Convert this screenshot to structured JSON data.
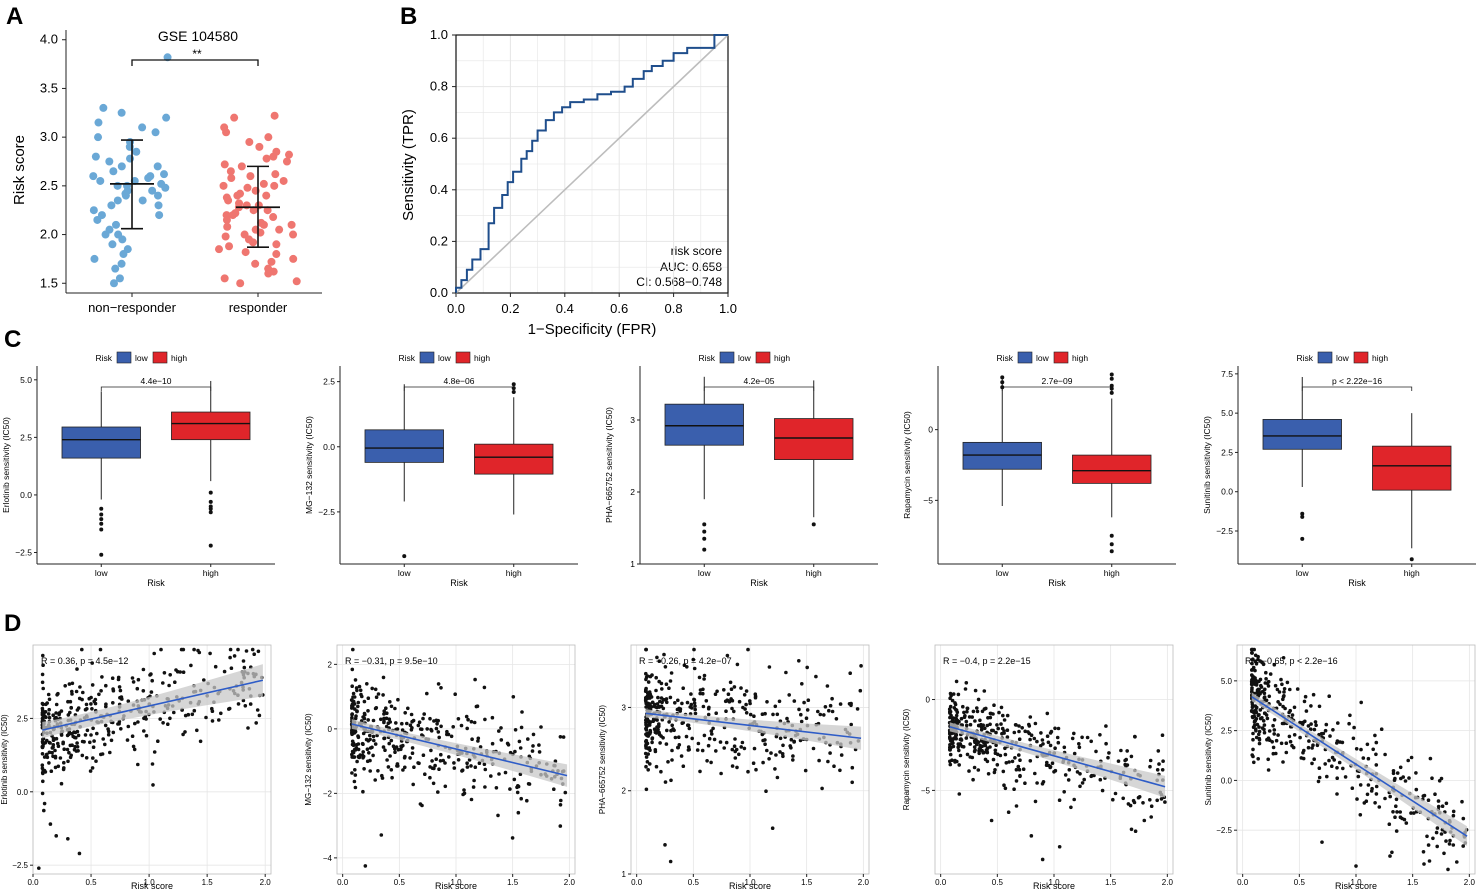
{
  "panel_letters": {
    "a": "A",
    "b": "B",
    "c": "C",
    "d": "D"
  },
  "colors": {
    "blue_point": "#6aa8d6",
    "red_point": "#ef7670",
    "box_low": "#3a5fad",
    "box_high": "#e0252a",
    "roc_line": "#1f4e8c",
    "diag_line": "#bdbdbd",
    "reg_line": "#2e5cc7",
    "ci_band": "#c8c8c8",
    "grid": "#e6e6e6"
  },
  "chart_data": [
    {
      "id": "A",
      "type": "scatter",
      "title": "GSE 104580",
      "ylabel": "Risk score",
      "categories": [
        "non−responder",
        "responder"
      ],
      "yticks": [
        "1.5",
        "2.0",
        "2.5",
        "3.0",
        "3.5",
        "4.0"
      ],
      "ylim": [
        1.4,
        4.1
      ],
      "significance": "**",
      "groups": [
        {
          "name": "non−responder",
          "color_key": "blue_point",
          "mean": 2.52,
          "sd_low": 2.06,
          "sd_high": 2.97,
          "values": [
            1.5,
            1.55,
            1.65,
            1.7,
            1.75,
            1.8,
            1.85,
            1.9,
            1.95,
            2.0,
            2.0,
            2.05,
            2.1,
            2.15,
            2.2,
            2.2,
            2.25,
            2.3,
            2.3,
            2.35,
            2.35,
            2.4,
            2.4,
            2.42,
            2.45,
            2.45,
            2.48,
            2.5,
            2.5,
            2.52,
            2.55,
            2.55,
            2.58,
            2.6,
            2.6,
            2.62,
            2.65,
            2.7,
            2.7,
            2.75,
            2.78,
            2.8,
            2.85,
            2.9,
            2.95,
            3.0,
            3.05,
            3.1,
            3.15,
            3.2,
            3.25,
            3.3,
            3.82
          ]
        },
        {
          "name": "responder",
          "color_key": "red_point",
          "mean": 2.28,
          "sd_low": 1.87,
          "sd_high": 2.7,
          "values": [
            1.5,
            1.52,
            1.55,
            1.6,
            1.62,
            1.65,
            1.7,
            1.72,
            1.75,
            1.8,
            1.82,
            1.85,
            1.88,
            1.9,
            1.92,
            1.95,
            1.98,
            2.0,
            2.0,
            2.02,
            2.05,
            2.05,
            2.08,
            2.1,
            2.1,
            2.12,
            2.15,
            2.18,
            2.2,
            2.2,
            2.22,
            2.25,
            2.25,
            2.28,
            2.3,
            2.3,
            2.32,
            2.35,
            2.38,
            2.4,
            2.4,
            2.42,
            2.45,
            2.48,
            2.5,
            2.5,
            2.52,
            2.55,
            2.58,
            2.6,
            2.62,
            2.65,
            2.7,
            2.72,
            2.75,
            2.78,
            2.8,
            2.82,
            2.85,
            2.9,
            2.95,
            3.0,
            3.05,
            3.1,
            3.2,
            3.22
          ]
        }
      ]
    },
    {
      "id": "B",
      "type": "line",
      "xlabel": "1−Specificity (FPR)",
      "ylabel": "Sensitivity (TPR)",
      "xticks": [
        "0.0",
        "0.2",
        "0.4",
        "0.6",
        "0.8",
        "1.0"
      ],
      "yticks": [
        "0.0",
        "0.2",
        "0.4",
        "0.6",
        "0.8",
        "1.0"
      ],
      "xlim": [
        0,
        1
      ],
      "ylim": [
        0,
        1
      ],
      "legend": {
        "line1": "risk score",
        "line2": "AUC: 0.658",
        "line3": "CI: 0.568−0.748"
      },
      "fpr": [
        0.0,
        0.0,
        0.02,
        0.02,
        0.04,
        0.04,
        0.06,
        0.06,
        0.09,
        0.09,
        0.12,
        0.12,
        0.14,
        0.14,
        0.17,
        0.17,
        0.19,
        0.19,
        0.21,
        0.21,
        0.24,
        0.24,
        0.26,
        0.26,
        0.28,
        0.28,
        0.3,
        0.3,
        0.33,
        0.33,
        0.36,
        0.36,
        0.39,
        0.39,
        0.42,
        0.42,
        0.47,
        0.47,
        0.52,
        0.52,
        0.57,
        0.57,
        0.62,
        0.62,
        0.65,
        0.65,
        0.69,
        0.69,
        0.72,
        0.72,
        0.76,
        0.76,
        0.8,
        0.8,
        0.85,
        0.85,
        0.95,
        0.95,
        1.0
      ],
      "tpr": [
        0.0,
        0.02,
        0.02,
        0.05,
        0.05,
        0.09,
        0.09,
        0.13,
        0.13,
        0.17,
        0.17,
        0.27,
        0.27,
        0.33,
        0.33,
        0.38,
        0.38,
        0.43,
        0.43,
        0.47,
        0.47,
        0.52,
        0.52,
        0.55,
        0.55,
        0.59,
        0.59,
        0.63,
        0.63,
        0.67,
        0.67,
        0.7,
        0.7,
        0.72,
        0.72,
        0.74,
        0.74,
        0.75,
        0.75,
        0.77,
        0.77,
        0.78,
        0.78,
        0.8,
        0.8,
        0.83,
        0.83,
        0.86,
        0.86,
        0.88,
        0.88,
        0.9,
        0.9,
        0.93,
        0.93,
        0.95,
        0.95,
        1.0,
        1.0
      ]
    },
    {
      "id": "C",
      "type": "box",
      "legend_title": "Risk",
      "legend_items": [
        "low",
        "high"
      ],
      "xlabel": "Risk",
      "categories": [
        "low",
        "high"
      ],
      "panels": [
        {
          "ylabel": "Erlotinib sensitivity (IC50)",
          "pvalue": "4.4e−10",
          "ylim": [
            -3.0,
            5.6
          ],
          "yticks": [
            {
              "v": -2.5,
              "t": "−2.5"
            },
            {
              "v": 0.0,
              "t": "0.0"
            },
            {
              "v": 2.5,
              "t": "2.5"
            },
            {
              "v": 5.0,
              "t": "5.0"
            }
          ],
          "boxes": [
            {
              "q1": 1.6,
              "median": 2.4,
              "q3": 2.95,
              "wlo": -0.2,
              "whi": 4.5,
              "outliers": [
                -0.6,
                -0.85,
                -1.05,
                -1.25,
                -1.5,
                -2.6
              ]
            },
            {
              "q1": 2.4,
              "median": 3.1,
              "q3": 3.6,
              "wlo": 0.6,
              "whi": 4.95,
              "outliers": [
                0.1,
                -0.3,
                -0.5,
                -0.6,
                -0.75,
                -2.2
              ]
            }
          ]
        },
        {
          "ylabel": "MG−132 sensitivity (IC50)",
          "pvalue": "4.8e−06",
          "ylim": [
            -4.5,
            3.1
          ],
          "yticks": [
            {
              "v": -2.5,
              "t": "−2.5"
            },
            {
              "v": 0.0,
              "t": "0.0"
            },
            {
              "v": 2.5,
              "t": "2.5"
            }
          ],
          "boxes": [
            {
              "q1": -0.6,
              "median": -0.05,
              "q3": 0.65,
              "wlo": -2.1,
              "whi": 2.4,
              "outliers": [
                -4.2
              ]
            },
            {
              "q1": -1.05,
              "median": -0.4,
              "q3": 0.1,
              "wlo": -2.6,
              "whi": 1.9,
              "outliers": [
                2.1,
                2.25,
                2.4
              ]
            }
          ]
        },
        {
          "ylabel": "PHA−665752 sensitivity (IC50)",
          "pvalue": "4.2e−05",
          "ylim": [
            1.0,
            3.75
          ],
          "yticks": [
            {
              "v": 1,
              "t": "1"
            },
            {
              "v": 2,
              "t": "2"
            },
            {
              "v": 3,
              "t": "3"
            }
          ],
          "boxes": [
            {
              "q1": 2.65,
              "median": 2.92,
              "q3": 3.22,
              "wlo": 1.9,
              "whi": 3.6,
              "outliers": [
                1.55,
                1.45,
                1.35,
                1.2
              ]
            },
            {
              "q1": 2.45,
              "median": 2.75,
              "q3": 3.02,
              "wlo": 1.65,
              "whi": 3.55,
              "outliers": [
                1.55
              ]
            }
          ]
        },
        {
          "ylabel": "Rapamycin sensitivity (IC50)",
          "pvalue": "2.7e−09",
          "ylim": [
            -9.5,
            4.5
          ],
          "yticks": [
            {
              "v": -5,
              "t": "−5"
            },
            {
              "v": 0,
              "t": "0"
            }
          ],
          "boxes": [
            {
              "q1": -2.8,
              "median": -1.8,
              "q3": -0.9,
              "wlo": -5.4,
              "whi": 3.6,
              "outliers": [
                3.0,
                3.35,
                3.7
              ]
            },
            {
              "q1": -3.8,
              "median": -2.9,
              "q3": -1.8,
              "wlo": -6.2,
              "whi": 2.2,
              "outliers": [
                2.6,
                2.9,
                3.1,
                3.6,
                3.9,
                -7.5,
                -8.1,
                -8.6
              ]
            }
          ]
        },
        {
          "ylabel": "Sunitinib sensitivity (IC50)",
          "pvalue": "p < 2.22e−16",
          "ylim": [
            -4.6,
            8.0
          ],
          "yticks": [
            {
              "v": -2.5,
              "t": "−2.5"
            },
            {
              "v": 0.0,
              "t": "0.0"
            },
            {
              "v": 2.5,
              "t": "2.5"
            },
            {
              "v": 5.0,
              "t": "5.0"
            },
            {
              "v": 7.5,
              "t": "7.5"
            }
          ],
          "boxes": [
            {
              "q1": 2.7,
              "median": 3.55,
              "q3": 4.6,
              "wlo": 0.3,
              "whi": 7.3,
              "outliers": [
                -1.4,
                -1.6,
                -3.0
              ]
            },
            {
              "q1": 0.1,
              "median": 1.65,
              "q3": 2.9,
              "wlo": -3.6,
              "whi": 5.0,
              "outliers": [
                -4.3
              ]
            }
          ]
        }
      ]
    },
    {
      "id": "D",
      "type": "scatter",
      "xlabel": "Risk score",
      "panels": [
        {
          "ylabel": "Erlotinib sensitivity (IC50)",
          "stat": "R = 0.36, p = 4.5e−12",
          "xlim": [
            0.0,
            2.05
          ],
          "ylim": [
            -2.8,
            5.0
          ],
          "xticks": [
            0.0,
            0.5,
            1.0,
            1.5,
            2.0
          ],
          "yticks": [
            {
              "v": -2.5,
              "t": "−2.5"
            },
            {
              "v": 0.0,
              "t": "0.0"
            },
            {
              "v": 2.5,
              "t": "2.5"
            }
          ],
          "fit": [
            2.1,
            3.8
          ],
          "ci": [
            0.28,
            0.55
          ],
          "seed": 11,
          "n": 420,
          "spread": 1.05,
          "points": [
            [
              0.05,
              -2.6
            ],
            [
              0.1,
              -0.4
            ],
            [
              0.15,
              -1.1
            ],
            [
              0.2,
              -1.5
            ],
            [
              0.3,
              -1.6
            ],
            [
              0.4,
              -2.1
            ],
            [
              1.92,
              4.0
            ],
            [
              1.95,
              2.6
            ]
          ]
        },
        {
          "ylabel": "MG−132 sensitivity (IC50)",
          "stat": "R = −0.31, p = 9.5e−10",
          "xlim": [
            -0.05,
            2.05
          ],
          "ylim": [
            -4.5,
            2.6
          ],
          "xticks": [
            0.0,
            0.5,
            1.0,
            1.5,
            2.0
          ],
          "yticks": [
            {
              "v": -4,
              "t": "−4"
            },
            {
              "v": -2,
              "t": "−2"
            },
            {
              "v": 0,
              "t": "0"
            },
            {
              "v": 2,
              "t": "2"
            }
          ],
          "fit": [
            0.15,
            -1.45
          ],
          "ci": [
            0.15,
            0.35
          ],
          "seed": 23,
          "n": 420,
          "spread": 0.95,
          "points": [
            [
              0.2,
              -4.25
            ],
            [
              1.55,
              -2.6
            ],
            [
              1.9,
              -1.3
            ]
          ]
        },
        {
          "ylabel": "PHA−665752 sensitivity (IC50)",
          "stat": "R = −0.26, p = 4.2e−07",
          "xlim": [
            -0.05,
            2.05
          ],
          "ylim": [
            1.0,
            3.75
          ],
          "xticks": [
            0.0,
            0.5,
            1.0,
            1.5,
            2.0
          ],
          "yticks": [
            {
              "v": 1,
              "t": "1"
            },
            {
              "v": 2,
              "t": "2"
            },
            {
              "v": 3,
              "t": "3"
            }
          ],
          "fit": [
            2.93,
            2.63
          ],
          "ci": [
            0.05,
            0.14
          ],
          "seed": 37,
          "n": 420,
          "spread": 0.42,
          "points": [
            [
              0.3,
              1.15
            ],
            [
              0.25,
              1.35
            ],
            [
              1.2,
              1.55
            ],
            [
              1.98,
              3.5
            ]
          ]
        },
        {
          "ylabel": "Rapamycin sensitivity (IC50)",
          "stat": "R = −0.4, p = 2.2e−15",
          "xlim": [
            -0.05,
            2.05
          ],
          "ylim": [
            -9.6,
            3.0
          ],
          "xticks": [
            0.0,
            0.5,
            1.0,
            1.5,
            2.0
          ],
          "yticks": [
            {
              "v": -5,
              "t": "−5"
            },
            {
              "v": 0,
              "t": "0"
            }
          ],
          "fit": [
            -1.5,
            -4.8
          ],
          "ci": [
            0.25,
            0.6
          ],
          "seed": 51,
          "n": 420,
          "spread": 1.5,
          "points": [
            [
              0.9,
              -8.8
            ],
            [
              0.8,
              -7.5
            ],
            [
              1.05,
              -8.1
            ],
            [
              0.6,
              -6.2
            ]
          ]
        },
        {
          "ylabel": "Sunitinib sensitivity (IC50)",
          "stat": "R = −0.65, p < 2.2e−16",
          "xlim": [
            -0.05,
            2.05
          ],
          "ylim": [
            -4.7,
            6.8
          ],
          "xticks": [
            0.0,
            0.5,
            1.0,
            1.5,
            2.0
          ],
          "yticks": [
            {
              "v": -2.5,
              "t": "−2.5"
            },
            {
              "v": 0.0,
              "t": "0.0"
            },
            {
              "v": 2.5,
              "t": "2.5"
            },
            {
              "v": 5.0,
              "t": "5.0"
            }
          ],
          "fit": [
            4.2,
            -2.8
          ],
          "ci": [
            0.22,
            0.5
          ],
          "seed": 67,
          "n": 420,
          "spread": 1.35,
          "points": [
            [
              0.7,
              -3.1
            ],
            [
              1.0,
              -4.3
            ],
            [
              1.6,
              -4.2
            ],
            [
              1.3,
              -3.8
            ]
          ]
        }
      ]
    }
  ]
}
